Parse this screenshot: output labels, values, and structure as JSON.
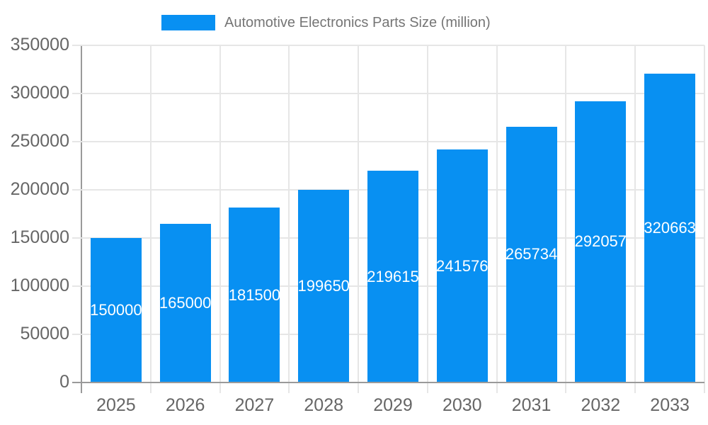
{
  "legend": {
    "label": "Automotive Electronics Parts Size (million)"
  },
  "colors": {
    "bar": "#0890F2",
    "grid": "#e6e6e6",
    "axis_line": "#9a9a9a",
    "baseline": "#9a9a9a",
    "tick_label": "#666666",
    "legend_text": "#757575",
    "bar_label": "#ffffff",
    "background": "#ffffff"
  },
  "chart_data": {
    "type": "bar",
    "title": "Automotive Electronics Parts Size (million)",
    "categories": [
      "2025",
      "2026",
      "2027",
      "2028",
      "2029",
      "2030",
      "2031",
      "2032",
      "2033"
    ],
    "values": [
      150000,
      165000,
      181500,
      199650,
      219615,
      241576,
      265734,
      292057,
      320663
    ],
    "bar_labels": [
      "150000",
      "165000",
      "181500",
      "199650",
      "219615",
      "241576",
      "265734",
      "292057",
      "320663"
    ],
    "xlabel": "",
    "ylabel": "",
    "ylim": [
      0,
      350000
    ],
    "yticks": [
      0,
      50000,
      100000,
      150000,
      200000,
      250000,
      300000,
      350000
    ],
    "grid": true,
    "legend_position": "top"
  }
}
